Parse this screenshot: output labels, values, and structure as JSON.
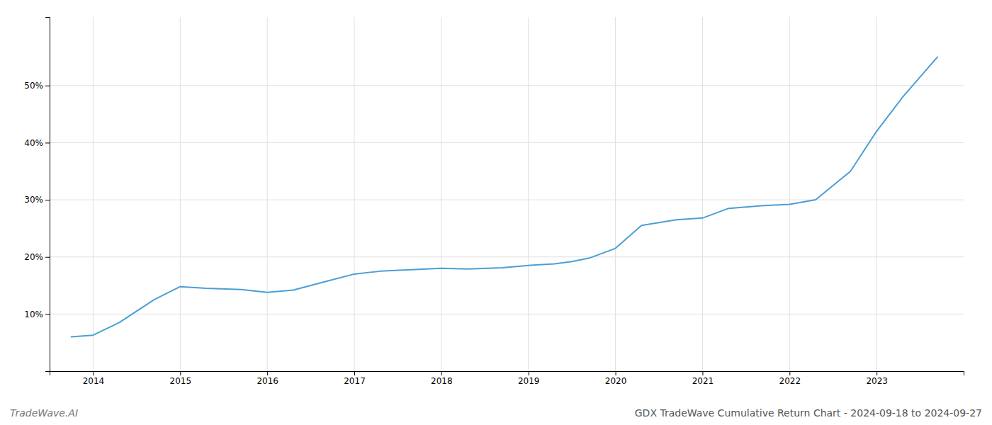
{
  "chart_data": {
    "type": "line",
    "title": "GDX TradeWave Cumulative Return Chart - 2024-09-18 to 2024-09-27",
    "annotations": [
      "TradeWave.AI"
    ],
    "color": "#4a9fd4",
    "x": [
      2013.75,
      2014.0,
      2014.3,
      2014.7,
      2015.0,
      2015.3,
      2015.7,
      2016.0,
      2016.3,
      2016.7,
      2017.0,
      2017.3,
      2017.7,
      2018.0,
      2018.3,
      2018.7,
      2019.0,
      2019.3,
      2019.5,
      2019.7,
      2020.0,
      2020.3,
      2020.7,
      2021.0,
      2021.3,
      2021.7,
      2022.0,
      2022.3,
      2022.7,
      2023.0,
      2023.3,
      2023.7
    ],
    "values": [
      6.0,
      6.3,
      8.5,
      12.5,
      14.8,
      14.5,
      14.3,
      13.8,
      14.2,
      15.8,
      17.0,
      17.5,
      17.8,
      18.0,
      17.9,
      18.1,
      18.5,
      18.8,
      19.2,
      19.8,
      21.5,
      25.5,
      26.5,
      26.8,
      28.5,
      29.0,
      29.2,
      30.0,
      35.0,
      42.0,
      48.0,
      55.0
    ],
    "xlim": [
      2013.5,
      2024.0
    ],
    "ylim": [
      0,
      62
    ],
    "xticks": [
      2014,
      2015,
      2016,
      2017,
      2018,
      2019,
      2020,
      2021,
      2022,
      2023
    ],
    "yticks": [
      {
        "value": 10,
        "label": "10%"
      },
      {
        "value": 20,
        "label": "20%"
      },
      {
        "value": 30,
        "label": "30%"
      },
      {
        "value": 40,
        "label": "40%"
      },
      {
        "value": 50,
        "label": "50%"
      }
    ],
    "grid": true
  }
}
